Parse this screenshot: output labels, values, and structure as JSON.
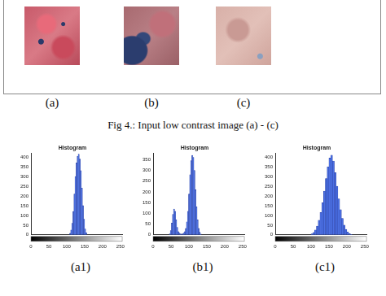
{
  "figure": {
    "images": [
      {
        "panel": "(a)"
      },
      {
        "panel": "(b)"
      },
      {
        "panel": "(c)"
      }
    ],
    "caption": "Fig 4.: Input low contrast image (a) - (c)"
  },
  "chart_data": [
    {
      "type": "histogram",
      "panel": "(a1)",
      "title": "Histogram",
      "color": "#4a6fe3",
      "bins": [
        108,
        111,
        114,
        117,
        120,
        123,
        126,
        129,
        132,
        135,
        138,
        141,
        144,
        147,
        150,
        153,
        156
      ],
      "values": [
        8,
        25,
        60,
        120,
        210,
        300,
        370,
        405,
        415,
        390,
        330,
        240,
        150,
        80,
        30,
        10
      ],
      "xlim": [
        0,
        255
      ],
      "xticks": [
        0,
        50,
        100,
        150,
        200,
        250
      ],
      "ylim": [
        0,
        420
      ],
      "yticks": [
        0,
        50,
        100,
        150,
        200,
        250,
        300,
        350,
        400
      ],
      "grid": false
    },
    {
      "type": "histogram",
      "panel": "(b1)",
      "title": "Histogram",
      "color": "#4a6fe3",
      "bins": [
        45,
        48,
        51,
        54,
        57,
        60,
        63,
        66,
        69,
        72,
        75,
        78,
        81,
        84,
        87,
        90,
        93,
        96,
        99,
        102,
        105,
        108,
        111,
        114,
        117,
        120,
        123,
        126,
        129,
        132,
        135
      ],
      "values": [
        5,
        20,
        55,
        95,
        120,
        110,
        70,
        35,
        15,
        8,
        5,
        4,
        5,
        8,
        15,
        30,
        60,
        110,
        190,
        280,
        345,
        370,
        360,
        300,
        210,
        130,
        70,
        30,
        12,
        4
      ],
      "xlim": [
        0,
        255
      ],
      "xticks": [
        0,
        50,
        100,
        150,
        200,
        250
      ],
      "ylim": [
        0,
        380
      ],
      "yticks": [
        0,
        50,
        100,
        150,
        200,
        250,
        300,
        350
      ],
      "grid": false
    },
    {
      "type": "histogram",
      "panel": "(c1)",
      "title": "Histogram",
      "color": "#4a6fe3",
      "bins": [
        100,
        105,
        110,
        115,
        120,
        125,
        130,
        135,
        140,
        145,
        150,
        155,
        160,
        165,
        170,
        175,
        180,
        185,
        190,
        195,
        200,
        205,
        210,
        215
      ],
      "values": [
        5,
        12,
        25,
        45,
        75,
        115,
        165,
        225,
        290,
        350,
        395,
        410,
        380,
        320,
        250,
        185,
        130,
        85,
        50,
        28,
        14,
        6,
        2
      ],
      "xlim": [
        0,
        255
      ],
      "xticks": [
        0,
        50,
        100,
        150,
        200,
        250
      ],
      "ylim": [
        0,
        420
      ],
      "yticks": [
        0,
        50,
        100,
        150,
        200,
        250,
        300,
        350,
        400
      ],
      "grid": false
    }
  ]
}
